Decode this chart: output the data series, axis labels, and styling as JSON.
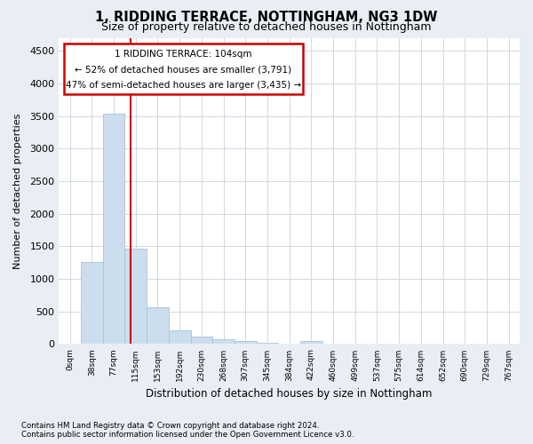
{
  "title": "1, RIDDING TERRACE, NOTTINGHAM, NG3 1DW",
  "subtitle": "Size of property relative to detached houses in Nottingham",
  "xlabel": "Distribution of detached houses by size in Nottingham",
  "ylabel": "Number of detached properties",
  "footnote1": "Contains HM Land Registry data © Crown copyright and database right 2024.",
  "footnote2": "Contains public sector information licensed under the Open Government Licence v3.0.",
  "bar_labels": [
    "0sqm",
    "38sqm",
    "77sqm",
    "115sqm",
    "153sqm",
    "192sqm",
    "230sqm",
    "268sqm",
    "307sqm",
    "345sqm",
    "384sqm",
    "422sqm",
    "460sqm",
    "499sqm",
    "537sqm",
    "575sqm",
    "614sqm",
    "652sqm",
    "690sqm",
    "729sqm",
    "767sqm"
  ],
  "bar_values": [
    10,
    1260,
    3530,
    1470,
    560,
    215,
    110,
    75,
    50,
    25,
    10,
    40,
    0,
    0,
    0,
    0,
    0,
    0,
    0,
    0,
    0
  ],
  "bar_color": "#ccdded",
  "bar_edge_color": "#aac4d8",
  "ylim": [
    0,
    4700
  ],
  "yticks": [
    0,
    500,
    1000,
    1500,
    2000,
    2500,
    3000,
    3500,
    4000,
    4500
  ],
  "vline_x": 2.76,
  "vline_color": "#cc0000",
  "ann_line1": "1 RIDDING TERRACE: 104sqm",
  "ann_line2": "← 52% of detached houses are smaller (3,791)",
  "ann_line3": "47% of semi-detached houses are larger (3,435) →",
  "bg_color": "#e8eef4",
  "plot_bg_color": "#ffffff"
}
